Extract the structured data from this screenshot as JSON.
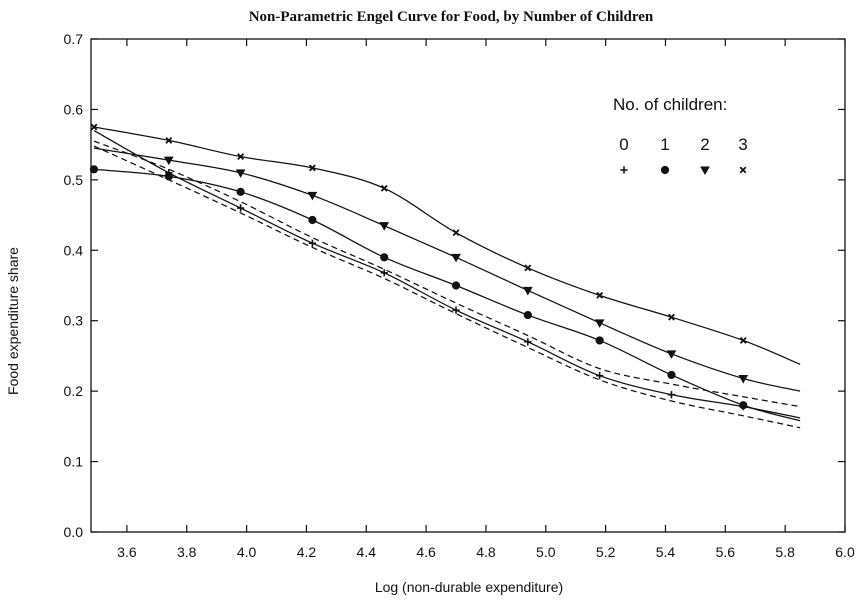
{
  "chart_data": {
    "type": "line",
    "title": "Non-Parametric Engel Curve for Food, by Number of Children",
    "xlabel": "Log (non-durable expenditure)",
    "ylabel": "Food expenditure share",
    "xlim": [
      3.48,
      6.0
    ],
    "ylim": [
      0.0,
      0.7
    ],
    "xticks": [
      "3.6",
      "3.8",
      "4.0",
      "4.2",
      "4.4",
      "4.6",
      "4.8",
      "5.0",
      "5.2",
      "5.4",
      "5.6",
      "5.8",
      "6.0"
    ],
    "yticks": [
      "0.0",
      "0.1",
      "0.2",
      "0.3",
      "0.4",
      "0.5",
      "0.6",
      "0.7"
    ],
    "grid": false,
    "legend": {
      "title": "No. of children:",
      "placement": "top-right",
      "entries": [
        {
          "label": "0",
          "marker": "plus"
        },
        {
          "label": "1",
          "marker": "circle"
        },
        {
          "label": "2",
          "marker": "triangle-down"
        },
        {
          "label": "3",
          "marker": "x"
        }
      ]
    },
    "series": [
      {
        "label": "0",
        "marker": "plus",
        "style": "solid",
        "x": [
          3.49,
          3.74,
          3.98,
          4.22,
          4.46,
          4.7,
          4.94,
          5.18,
          5.42,
          5.66,
          5.85
        ],
        "y": [
          0.57,
          0.51,
          0.46,
          0.41,
          0.368,
          0.315,
          0.27,
          0.222,
          0.195,
          0.178,
          0.162
        ],
        "marker_x": [
          3.74,
          3.98,
          4.22,
          4.46,
          4.7,
          4.94,
          5.18,
          5.42,
          5.66
        ]
      },
      {
        "label": "1",
        "marker": "circle",
        "style": "solid",
        "x": [
          3.49,
          3.74,
          3.98,
          4.22,
          4.46,
          4.7,
          4.94,
          5.18,
          5.42,
          5.66,
          5.85
        ],
        "y": [
          0.515,
          0.505,
          0.483,
          0.443,
          0.39,
          0.35,
          0.308,
          0.272,
          0.223,
          0.18,
          0.158
        ],
        "marker_x": [
          3.49,
          3.74,
          3.98,
          4.22,
          4.46,
          4.7,
          4.94,
          5.18,
          5.42,
          5.66
        ]
      },
      {
        "label": "2",
        "marker": "triangle-down",
        "style": "solid",
        "x": [
          3.49,
          3.74,
          3.98,
          4.22,
          4.46,
          4.7,
          4.94,
          5.18,
          5.42,
          5.66,
          5.85
        ],
        "y": [
          0.545,
          0.528,
          0.51,
          0.478,
          0.435,
          0.39,
          0.343,
          0.297,
          0.253,
          0.218,
          0.2
        ],
        "marker_x": [
          3.74,
          3.98,
          4.22,
          4.46,
          4.7,
          4.94,
          5.18,
          5.42,
          5.66
        ]
      },
      {
        "label": "3",
        "marker": "x",
        "style": "solid",
        "x": [
          3.49,
          3.74,
          3.98,
          4.22,
          4.46,
          4.7,
          4.94,
          5.18,
          5.42,
          5.66,
          5.85
        ],
        "y": [
          0.575,
          0.556,
          0.533,
          0.517,
          0.488,
          0.425,
          0.375,
          0.336,
          0.305,
          0.272,
          0.238
        ],
        "marker_x": [
          3.49,
          3.74,
          3.98,
          4.22,
          4.46,
          4.7,
          4.94,
          5.18,
          5.42,
          5.66
        ]
      },
      {
        "label": "",
        "style": "dashed",
        "x": [
          3.49,
          3.74,
          3.98,
          4.22,
          4.46,
          4.7,
          4.94,
          5.18,
          5.42,
          5.66,
          5.85
        ],
        "y": [
          0.555,
          0.515,
          0.469,
          0.418,
          0.373,
          0.325,
          0.279,
          0.232,
          0.21,
          0.192,
          0.178
        ]
      },
      {
        "label": "",
        "style": "dashed",
        "x": [
          3.49,
          3.74,
          3.98,
          4.22,
          4.46,
          4.7,
          4.94,
          5.18,
          5.42,
          5.66,
          5.85
        ],
        "y": [
          0.548,
          0.5,
          0.453,
          0.404,
          0.36,
          0.31,
          0.262,
          0.216,
          0.186,
          0.165,
          0.148
        ]
      }
    ]
  }
}
